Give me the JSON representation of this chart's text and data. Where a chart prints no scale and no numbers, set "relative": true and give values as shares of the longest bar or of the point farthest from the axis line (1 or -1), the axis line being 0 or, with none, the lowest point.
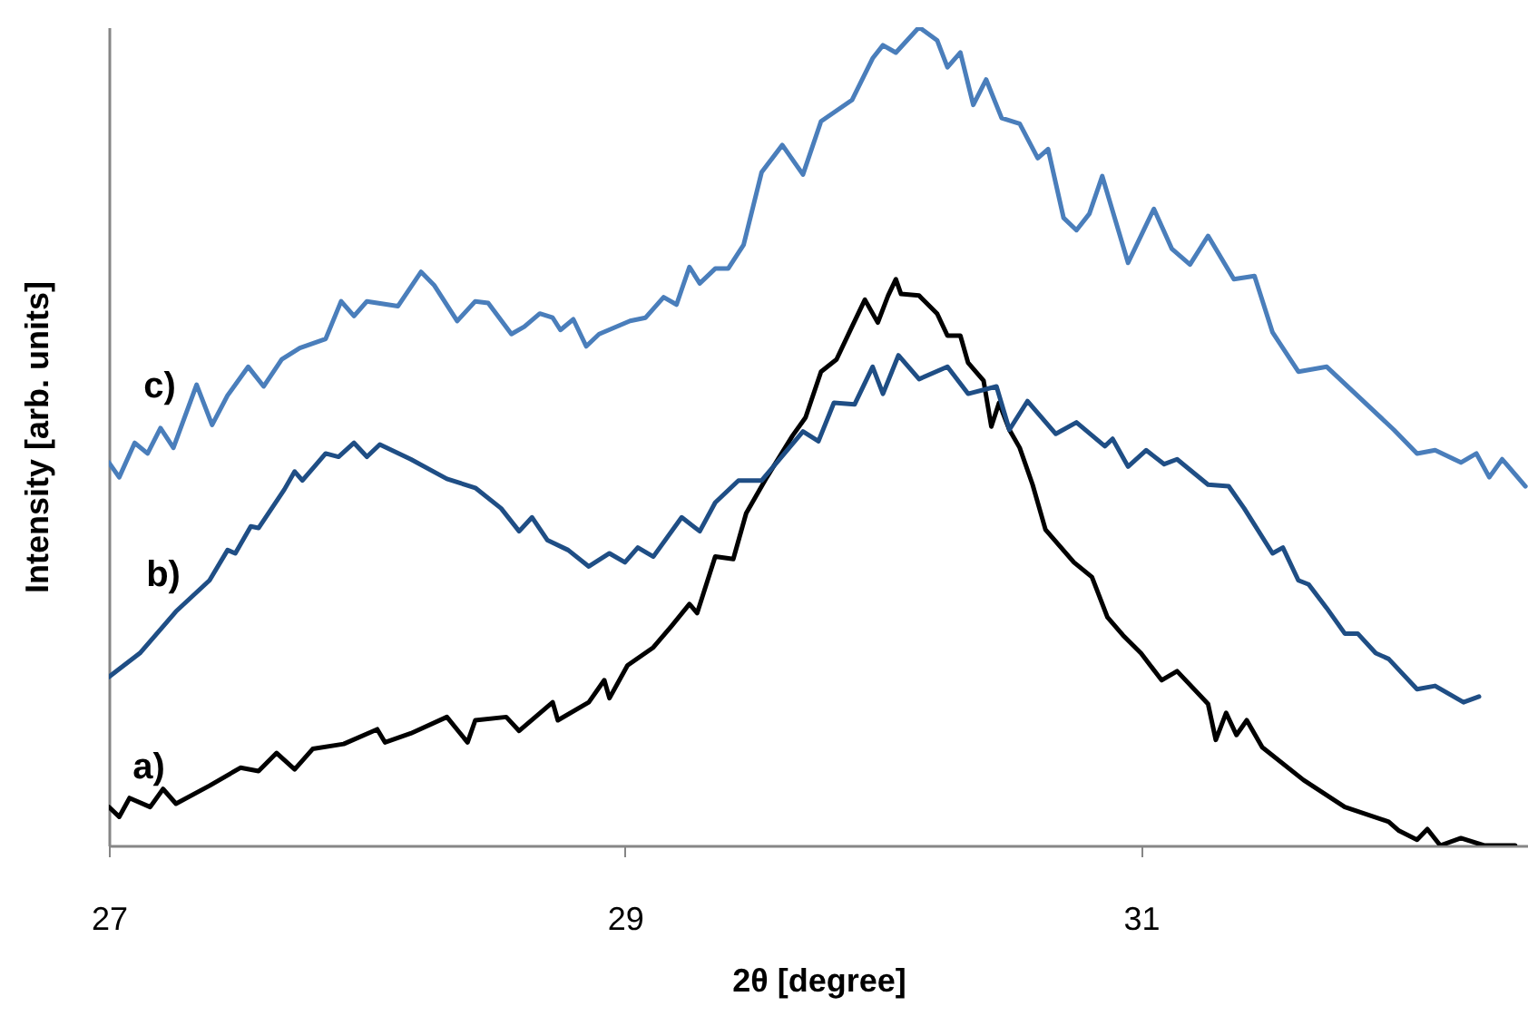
{
  "chart_data": {
    "type": "line",
    "relative": true,
    "xlabel": "2θ [degree]",
    "ylabel": "Intensity [arb. units]",
    "xlim": [
      27,
      32.5
    ],
    "xticks": [
      27,
      29,
      31
    ],
    "series": [
      {
        "name": "a)",
        "color": "#000000",
        "x": [
          27.0,
          27.04,
          27.08,
          27.16,
          27.21,
          27.26,
          27.39,
          27.51,
          27.58,
          27.65,
          27.72,
          27.79,
          27.91,
          28.04,
          28.07,
          28.17,
          28.31,
          28.39,
          28.42,
          28.54,
          28.59,
          28.72,
          28.74,
          28.86,
          28.92,
          28.94,
          29.01,
          29.11,
          29.18,
          29.25,
          29.28,
          29.35,
          29.42,
          29.47,
          29.55,
          29.65,
          29.7,
          29.76,
          29.82,
          29.88,
          29.93,
          29.98,
          30.02,
          30.05,
          30.07,
          30.14,
          30.21,
          30.25,
          30.3,
          30.33,
          30.39,
          30.42,
          30.45,
          30.49,
          30.53,
          30.58,
          30.63,
          30.74,
          30.81,
          30.87,
          30.93,
          31.0,
          31.08,
          31.14,
          31.26,
          31.29,
          31.33,
          31.37,
          31.41,
          31.47,
          31.63,
          31.79,
          31.96,
          32.0,
          32.07,
          32.11,
          32.16,
          32.24,
          32.33,
          32.45
        ],
        "values": [
          0.047,
          0.035,
          0.058,
          0.047,
          0.069,
          0.051,
          0.073,
          0.095,
          0.091,
          0.113,
          0.093,
          0.118,
          0.124,
          0.142,
          0.126,
          0.137,
          0.157,
          0.126,
          0.153,
          0.157,
          0.14,
          0.175,
          0.153,
          0.175,
          0.202,
          0.18,
          0.22,
          0.242,
          0.268,
          0.295,
          0.284,
          0.353,
          0.35,
          0.406,
          0.45,
          0.501,
          0.523,
          0.579,
          0.594,
          0.634,
          0.667,
          0.639,
          0.672,
          0.692,
          0.674,
          0.672,
          0.65,
          0.623,
          0.623,
          0.59,
          0.568,
          0.512,
          0.541,
          0.508,
          0.486,
          0.441,
          0.386,
          0.346,
          0.328,
          0.279,
          0.257,
          0.235,
          0.202,
          0.213,
          0.173,
          0.129,
          0.162,
          0.135,
          0.153,
          0.12,
          0.08,
          0.047,
          0.029,
          0.018,
          0.007,
          0.02,
          0,
          0.009,
          0,
          0
        ]
      },
      {
        "name": "b)",
        "color": "#1f4e85",
        "x": [
          27.0,
          27.12,
          27.26,
          27.39,
          27.46,
          27.49,
          27.55,
          27.58,
          27.68,
          27.72,
          27.75,
          27.84,
          27.89,
          27.95,
          28.0,
          28.05,
          28.17,
          28.31,
          28.42,
          28.52,
          28.59,
          28.64,
          28.7,
          28.78,
          28.86,
          28.94,
          29.0,
          29.05,
          29.11,
          29.22,
          29.29,
          29.35,
          29.44,
          29.53,
          29.69,
          29.75,
          29.81,
          29.89,
          29.96,
          30.0,
          30.06,
          30.14,
          30.25,
          30.33,
          30.44,
          30.49,
          30.56,
          30.67,
          30.75,
          30.86,
          30.89,
          30.95,
          31.02,
          31.09,
          31.14,
          31.26,
          31.34,
          31.4,
          31.51,
          31.55,
          31.61,
          31.65,
          31.72,
          31.79,
          31.84,
          31.91,
          31.96,
          32.07,
          32.14,
          32.25,
          32.31
        ],
        "values": [
          0.206,
          0.235,
          0.286,
          0.324,
          0.361,
          0.357,
          0.39,
          0.388,
          0.435,
          0.457,
          0.446,
          0.479,
          0.475,
          0.492,
          0.475,
          0.49,
          0.472,
          0.448,
          0.437,
          0.412,
          0.384,
          0.401,
          0.373,
          0.361,
          0.341,
          0.357,
          0.346,
          0.364,
          0.353,
          0.401,
          0.384,
          0.419,
          0.446,
          0.446,
          0.506,
          0.494,
          0.541,
          0.539,
          0.585,
          0.552,
          0.599,
          0.57,
          0.585,
          0.552,
          0.561,
          0.508,
          0.543,
          0.503,
          0.517,
          0.488,
          0.497,
          0.463,
          0.483,
          0.466,
          0.472,
          0.441,
          0.439,
          0.412,
          0.357,
          0.364,
          0.324,
          0.319,
          0.29,
          0.259,
          0.259,
          0.235,
          0.228,
          0.191,
          0.195,
          0.175,
          0.182
        ]
      },
      {
        "name": "c)",
        "color": "#4a7ebb",
        "x": [
          27.0,
          27.04,
          27.1,
          27.15,
          27.2,
          27.25,
          27.34,
          27.4,
          27.46,
          27.54,
          27.6,
          27.67,
          27.74,
          27.84,
          27.9,
          27.95,
          28.0,
          28.12,
          28.21,
          28.26,
          28.35,
          28.42,
          28.47,
          28.56,
          28.61,
          28.67,
          28.72,
          28.75,
          28.8,
          28.85,
          28.9,
          29.02,
          29.08,
          29.15,
          29.2,
          29.25,
          29.29,
          29.35,
          29.4,
          29.46,
          29.53,
          29.61,
          29.69,
          29.76,
          29.88,
          29.96,
          30.0,
          30.05,
          30.14,
          30.21,
          30.25,
          30.3,
          30.35,
          30.4,
          30.46,
          30.53,
          30.6,
          30.64,
          30.7,
          30.75,
          30.8,
          30.85,
          30.95,
          31.05,
          31.12,
          31.19,
          31.26,
          31.36,
          31.44,
          31.51,
          31.61,
          31.72,
          31.98,
          32.07,
          32.14,
          32.24,
          32.3,
          32.35,
          32.4,
          32.49
        ],
        "values": [
          0.468,
          0.45,
          0.492,
          0.479,
          0.51,
          0.486,
          0.563,
          0.514,
          0.55,
          0.585,
          0.561,
          0.594,
          0.608,
          0.619,
          0.665,
          0.647,
          0.665,
          0.659,
          0.701,
          0.685,
          0.641,
          0.665,
          0.663,
          0.625,
          0.634,
          0.65,
          0.645,
          0.63,
          0.643,
          0.61,
          0.625,
          0.641,
          0.645,
          0.67,
          0.661,
          0.707,
          0.687,
          0.705,
          0.705,
          0.734,
          0.823,
          0.856,
          0.82,
          0.885,
          0.911,
          0.962,
          0.978,
          0.969,
          1.0,
          0.984,
          0.951,
          0.969,
          0.905,
          0.936,
          0.889,
          0.882,
          0.84,
          0.851,
          0.767,
          0.752,
          0.772,
          0.818,
          0.712,
          0.778,
          0.729,
          0.71,
          0.745,
          0.692,
          0.696,
          0.627,
          0.579,
          0.585,
          0.508,
          0.479,
          0.483,
          0.468,
          0.479,
          0.45,
          0.472,
          0.439
        ]
      }
    ]
  }
}
